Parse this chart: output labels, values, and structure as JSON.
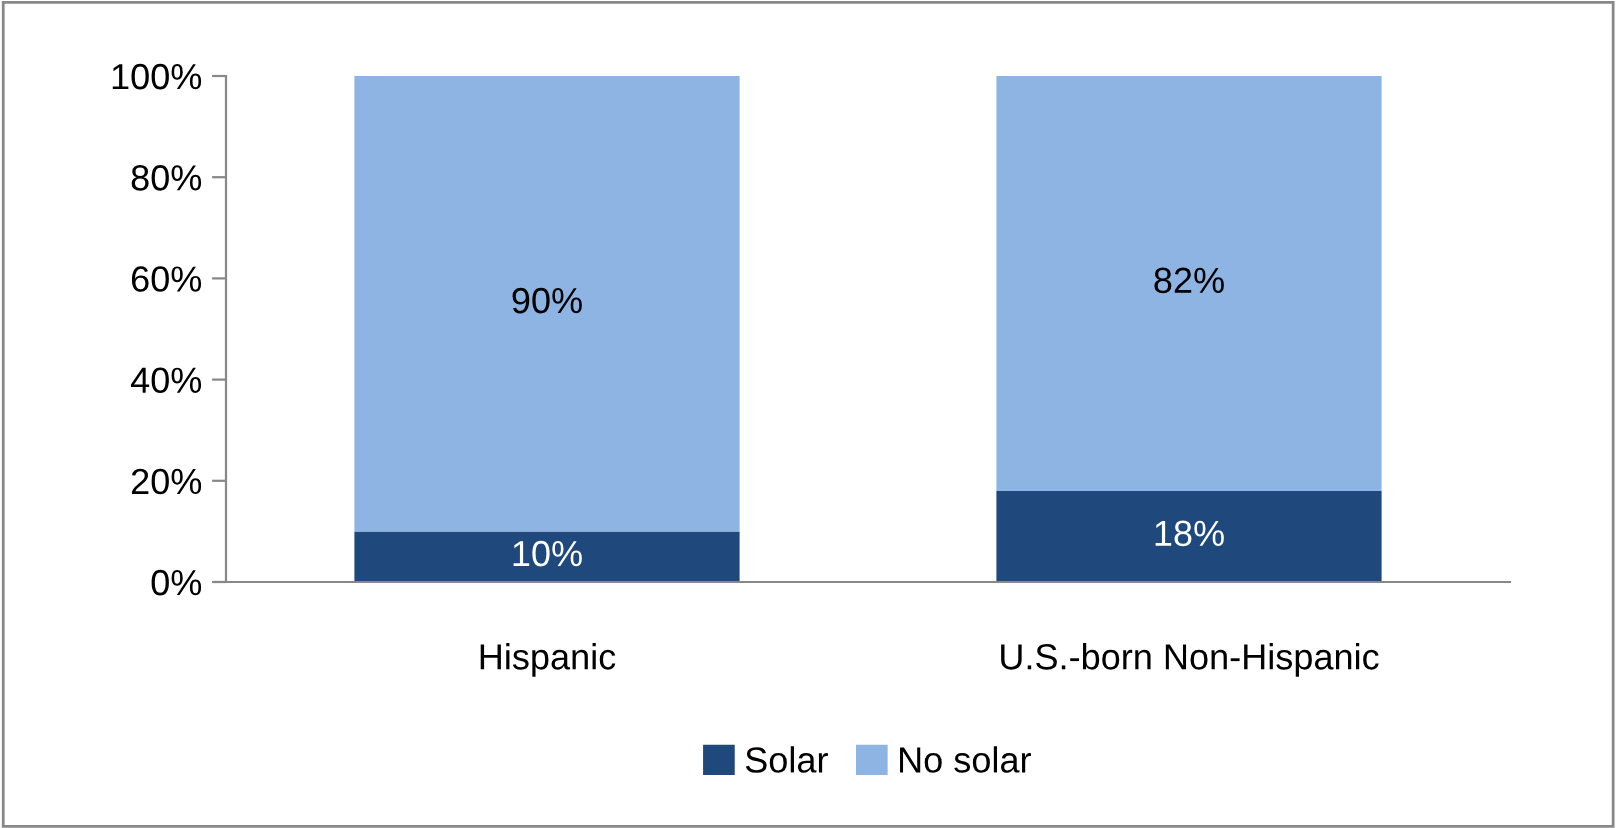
{
  "chart_data": {
    "type": "bar",
    "stacked": true,
    "categories": [
      "Hispanic",
      "U.S.-born Non-Hispanic"
    ],
    "series": [
      {
        "name": "Solar",
        "color": "#1f497d",
        "values": [
          10,
          18
        ],
        "value_labels": [
          "10%",
          "18%"
        ]
      },
      {
        "name": "No solar",
        "color": "#8eb4e3",
        "values": [
          90,
          82
        ],
        "value_labels": [
          "90%",
          "82%"
        ]
      }
    ],
    "ylim": [
      0,
      100
    ],
    "yticks": [
      {
        "value": 0,
        "label": "0%"
      },
      {
        "value": 20,
        "label": "20%"
      },
      {
        "value": 40,
        "label": "40%"
      },
      {
        "value": 60,
        "label": "60%"
      },
      {
        "value": 80,
        "label": "80%"
      },
      {
        "value": 100,
        "label": "100%"
      }
    ],
    "grid": false,
    "legend": "bottom"
  }
}
